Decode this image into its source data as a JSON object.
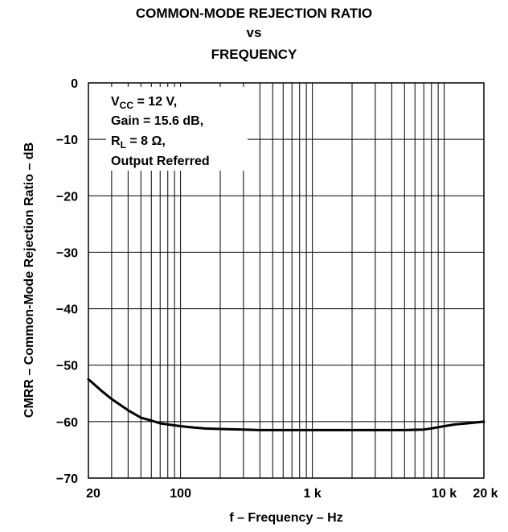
{
  "title": {
    "line1": "COMMON-MODE REJECTION RATIO",
    "line2": "vs",
    "line3": "FREQUENCY"
  },
  "annotation": {
    "vcc_prefix": "V",
    "vcc_sub": "CC",
    "vcc_rest": " = 12 V,",
    "gain": "Gain = 15.6 dB,",
    "rl_prefix": "R",
    "rl_sub": "L",
    "rl_rest": " = 8 Ω,",
    "note": "Output Referred"
  },
  "chart_data": {
    "type": "line",
    "title": "COMMON-MODE REJECTION RATIO vs FREQUENCY",
    "xlabel": "f – Frequency – Hz",
    "ylabel": "CMRR – Common-Mode Rejection Ratio – dB",
    "x_scale": "log",
    "xlim": [
      20,
      20000
    ],
    "ylim": [
      -70,
      0
    ],
    "grid": true,
    "x_ticks": [
      {
        "value": 20,
        "label": "20"
      },
      {
        "value": 100,
        "label": "100"
      },
      {
        "value": 1000,
        "label": "1 k"
      },
      {
        "value": 10000,
        "label": "10 k"
      },
      {
        "value": 20000,
        "label": "20 k"
      }
    ],
    "y_ticks": [
      {
        "value": 0,
        "label": "0"
      },
      {
        "value": -10,
        "label": "−10"
      },
      {
        "value": -20,
        "label": "−20"
      },
      {
        "value": -30,
        "label": "−30"
      },
      {
        "value": -40,
        "label": "−40"
      },
      {
        "value": -50,
        "label": "−50"
      },
      {
        "value": -60,
        "label": "−60"
      },
      {
        "value": -70,
        "label": "−70"
      }
    ],
    "series": [
      {
        "x": [
          20,
          25,
          30,
          40,
          50,
          60,
          70,
          80,
          100,
          120,
          150,
          200,
          300,
          400,
          500,
          700,
          1000,
          2000,
          3000,
          5000,
          7000,
          8000,
          10000,
          12000,
          15000,
          20000
        ],
        "y": [
          -52.5,
          -54.5,
          -56,
          -58,
          -59.3,
          -59.8,
          -60.3,
          -60.5,
          -60.8,
          -61,
          -61.2,
          -61.3,
          -61.4,
          -61.5,
          -61.5,
          -61.5,
          -61.5,
          -61.5,
          -61.5,
          -61.5,
          -61.4,
          -61.2,
          -60.8,
          -60.5,
          -60.3,
          -60
        ]
      }
    ]
  }
}
